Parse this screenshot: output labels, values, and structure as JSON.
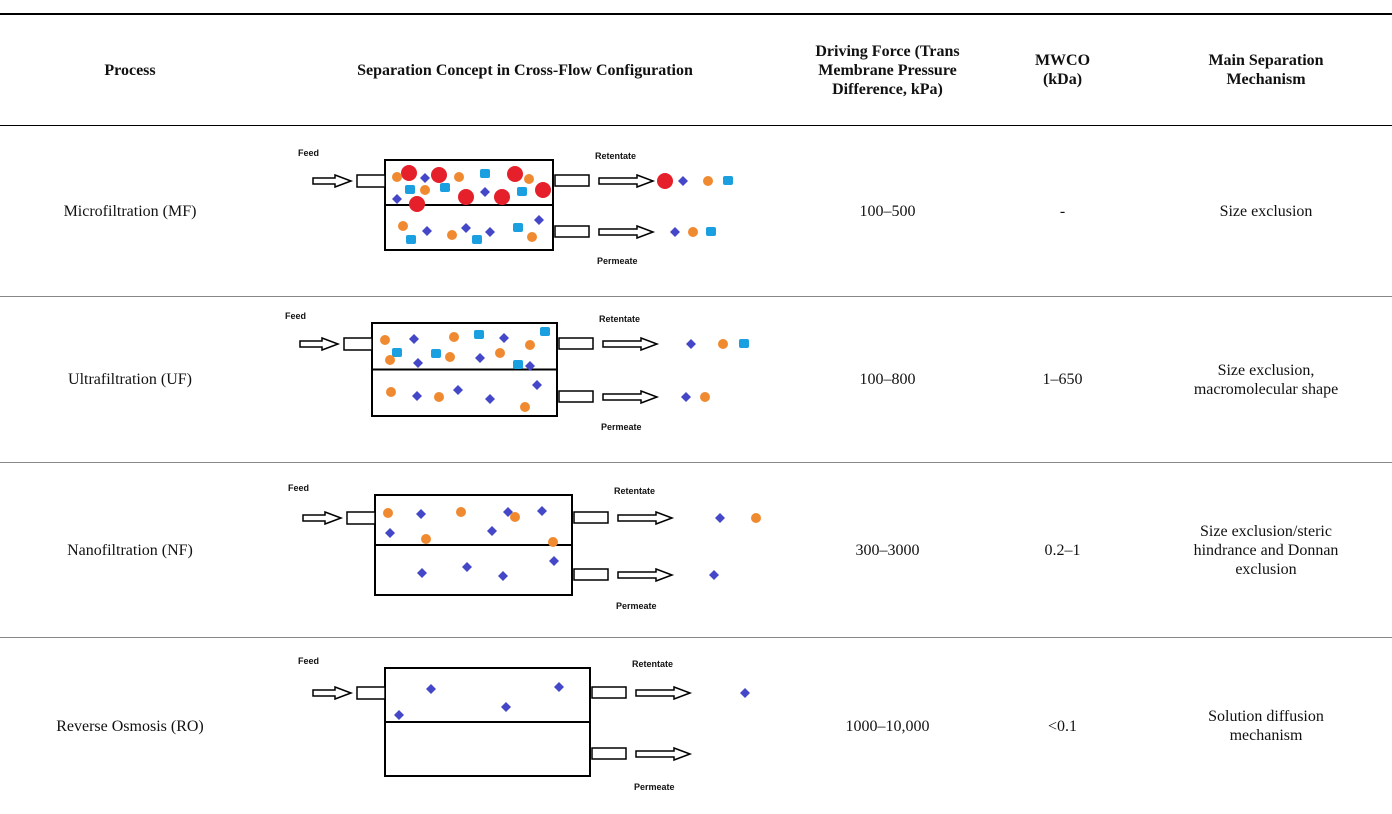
{
  "table": {
    "header": [
      "Process",
      "Separation Concept in Cross-Flow Configuration",
      "Driving Force (Trans Membrane Pressure Difference, kPa)",
      "MWCO (kDa)",
      "Main Separation Mechanism"
    ],
    "rows": [
      {
        "process": "Microfiltration (MF)",
        "diagram": {
          "feed": "Feed",
          "retentate": "Retentate",
          "permeate": "Permeate"
        },
        "driving_force": "100–500",
        "mwco": "-",
        "mechanism": "Size exclusion"
      },
      {
        "process": "Ultrafiltration (UF)",
        "diagram": {
          "feed": "Feed",
          "retentate": "Retentate",
          "permeate": "Permeate"
        },
        "driving_force": "100–800",
        "mwco": "1–650",
        "mechanism": "Size exclusion, macromolecular shape"
      },
      {
        "process": "Nanofiltration (NF)",
        "diagram": {
          "feed": "Feed",
          "retentate": "Retentate",
          "permeate": "Permeate"
        },
        "driving_force": "300–3000",
        "mwco": "0.2–1",
        "mechanism": "Size exclusion/steric hindrance and Donnan exclusion"
      },
      {
        "process": "Reverse Osmosis (RO)",
        "diagram": {
          "feed": "Feed",
          "retentate": "Retentate",
          "permeate": "Permeate"
        },
        "driving_force": "1000–10,000",
        "mwco": "<0.1",
        "mechanism": "Solution diffusion mechanism"
      }
    ]
  }
}
